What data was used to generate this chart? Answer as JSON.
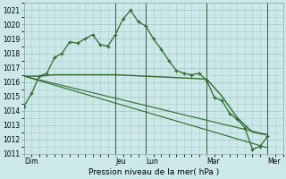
{
  "bg_color": "#cce8e8",
  "grid_color": "#aacccc",
  "line_color": "#2d6a2d",
  "title": "Pression niveau de la mer( hPa )",
  "ylim": [
    1011,
    1021.5
  ],
  "yticks": [
    1011,
    1012,
    1013,
    1014,
    1015,
    1016,
    1017,
    1018,
    1019,
    1020,
    1021
  ],
  "day_labels": [
    "Dim",
    "Jeu",
    "Lun",
    "Mar",
    "Mer"
  ],
  "day_positions": [
    0,
    12,
    16,
    24,
    32
  ],
  "xlim": [
    0,
    34
  ],
  "series1_x": [
    0,
    1,
    2,
    3,
    4,
    5,
    6,
    7,
    8,
    9,
    10,
    11,
    12,
    13,
    14,
    15,
    16,
    17,
    18,
    19,
    20,
    21,
    22,
    23,
    24,
    25,
    26,
    27,
    28,
    29,
    30,
    31,
    32
  ],
  "series1_y": [
    1014.3,
    1015.2,
    1016.4,
    1016.6,
    1017.7,
    1018.0,
    1018.8,
    1018.7,
    1019.0,
    1019.3,
    1018.6,
    1018.5,
    1019.3,
    1020.4,
    1021.0,
    1020.2,
    1019.9,
    1019.0,
    1018.3,
    1017.5,
    1016.8,
    1016.6,
    1016.5,
    1016.6,
    1016.1,
    1014.9,
    1014.7,
    1013.8,
    1013.4,
    1012.8,
    1011.3,
    1011.5,
    1012.2
  ],
  "series2_x": [
    0,
    2,
    4,
    6,
    8,
    10,
    12,
    14,
    16,
    18,
    20,
    22,
    24,
    26,
    28,
    30,
    32
  ],
  "series2_y": [
    1016.4,
    1016.4,
    1016.5,
    1016.5,
    1016.5,
    1016.5,
    1016.5,
    1016.45,
    1016.4,
    1016.35,
    1016.3,
    1016.25,
    1016.2,
    1015.0,
    1013.5,
    1012.5,
    1012.3
  ],
  "series3_x": [
    0,
    32
  ],
  "series3_y": [
    1016.4,
    1012.3
  ],
  "series4_x": [
    0,
    32
  ],
  "series4_y": [
    1016.4,
    1011.4
  ],
  "vline_positions": [
    12,
    16,
    24,
    32
  ]
}
